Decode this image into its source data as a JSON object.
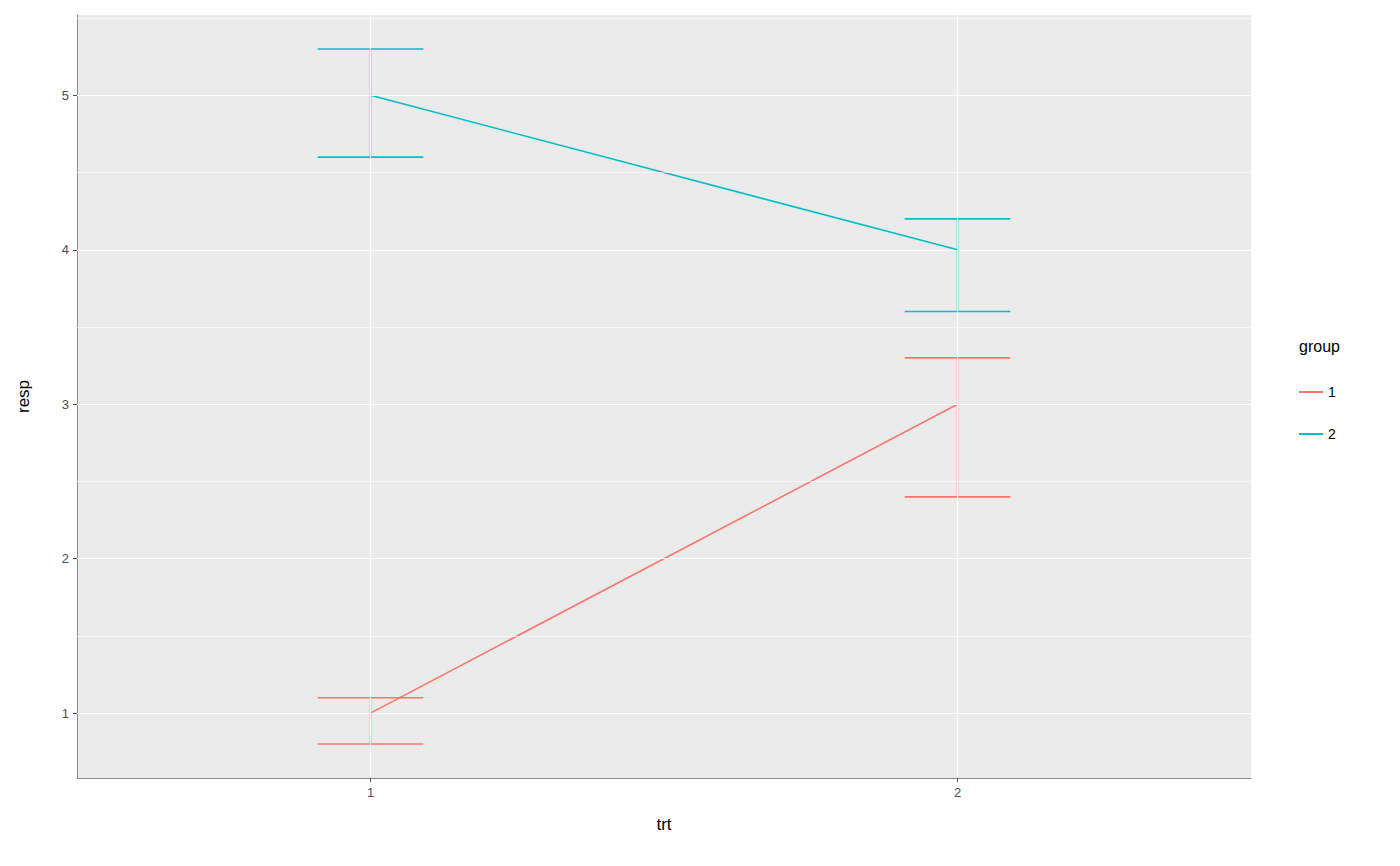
{
  "chart_data": {
    "type": "line",
    "x_label": "trt",
    "y_label": "resp",
    "categories": [
      "1",
      "2"
    ],
    "series": [
      {
        "name": "1",
        "color": "#F8766D",
        "values": [
          1,
          3
        ],
        "error_low": [
          0.8,
          2.4
        ],
        "error_high": [
          1.1,
          3.3
        ]
      },
      {
        "name": "2",
        "color": "#00BFC4",
        "values": [
          5,
          4
        ],
        "error_low": [
          4.6,
          3.6
        ],
        "error_high": [
          5.3,
          4.2
        ]
      }
    ],
    "ylim": [
      0.58,
      5.52
    ],
    "yticks": [
      1,
      2,
      3,
      4,
      5
    ],
    "grid": true,
    "legend": "right",
    "legend_title": "group"
  }
}
